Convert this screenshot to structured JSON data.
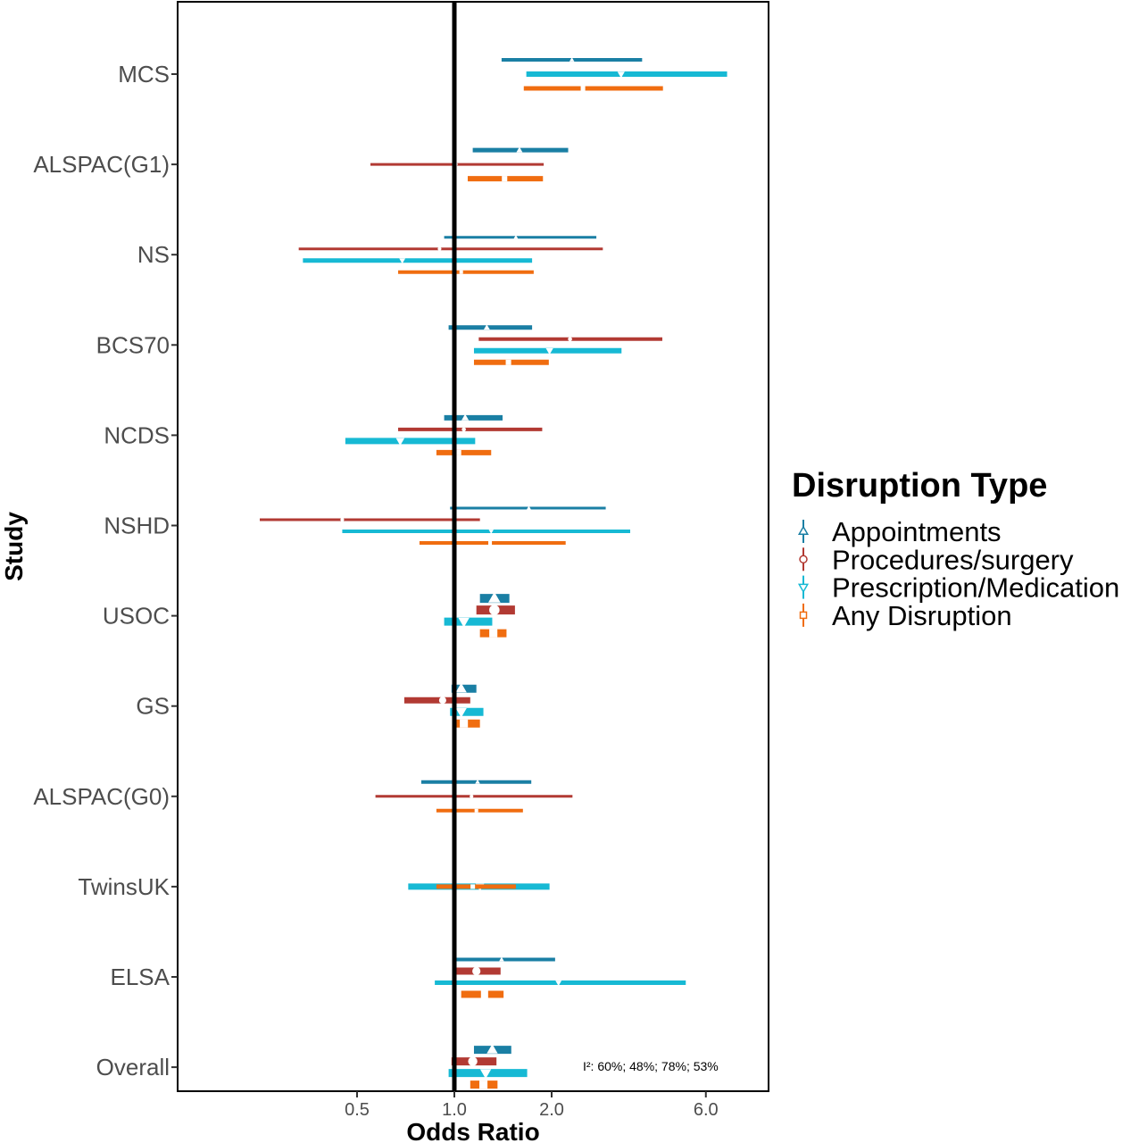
{
  "chart_data": {
    "type": "forest",
    "xlabel": "Odds Ratio",
    "ylabel": "Study",
    "x_scale": "log",
    "xlim": [
      0.3,
      7.6
    ],
    "x_ticks": [
      {
        "value": 0.5,
        "label": "0.5"
      },
      {
        "value": 1.0,
        "label": "1.0"
      },
      {
        "value": 2.0,
        "label": "2.0"
      },
      {
        "value": 6.0,
        "label": "6.0"
      }
    ],
    "reference_line": 1.0,
    "grid": false,
    "legend": {
      "title": "Disruption Type",
      "position": "right",
      "entries": [
        {
          "name": "Appointments",
          "color": "#1a7fa4",
          "shape": "triangle-up"
        },
        {
          "name": "Procedures/surgery",
          "color": "#b23a33",
          "shape": "circle"
        },
        {
          "name": "Prescription/Medication",
          "color": "#17b9d4",
          "shape": "triangle-down"
        },
        {
          "name": "Any Disruption",
          "color": "#f06d10",
          "shape": "square"
        }
      ]
    },
    "annotation": "I²: 60%; 48%; 78%; 53%",
    "studies": [
      {
        "label": "MCS",
        "rows": [
          {
            "type": 0,
            "or": 2.31,
            "lo": 1.4,
            "hi": 3.81,
            "w": 4
          },
          {
            "type": 2,
            "or": 3.28,
            "lo": 1.67,
            "hi": 6.98,
            "w": 6
          },
          {
            "type": 3,
            "or": 2.5,
            "lo": 1.64,
            "hi": 4.42,
            "w": 5
          }
        ]
      },
      {
        "label": "ALSPAC(G1)",
        "rows": [
          {
            "type": 0,
            "or": 1.59,
            "lo": 1.14,
            "hi": 2.25,
            "w": 5
          },
          {
            "type": 1,
            "or": 1.01,
            "lo": 0.55,
            "hi": 1.89,
            "w": 3
          },
          {
            "type": 3,
            "or": 1.43,
            "lo": 1.1,
            "hi": 1.88,
            "w": 6
          }
        ]
      },
      {
        "label": "NS",
        "rows": [
          {
            "type": 0,
            "or": 1.55,
            "lo": 0.93,
            "hi": 2.75,
            "w": 3
          },
          {
            "type": 1,
            "or": 0.9,
            "lo": 0.33,
            "hi": 2.88,
            "w": 3
          },
          {
            "type": 2,
            "or": 0.69,
            "lo": 0.34,
            "hi": 1.74,
            "w": 5
          },
          {
            "type": 3,
            "or": 1.05,
            "lo": 0.67,
            "hi": 1.76,
            "w": 4
          }
        ]
      },
      {
        "label": "BCS70",
        "rows": [
          {
            "type": 0,
            "or": 1.26,
            "lo": 0.96,
            "hi": 1.74,
            "w": 5
          },
          {
            "type": 1,
            "or": 2.28,
            "lo": 1.19,
            "hi": 4.4,
            "w": 4
          },
          {
            "type": 2,
            "or": 1.97,
            "lo": 1.15,
            "hi": 3.29,
            "w": 6
          },
          {
            "type": 3,
            "or": 1.47,
            "lo": 1.15,
            "hi": 1.96,
            "w": 6
          }
        ]
      },
      {
        "label": "NCDS",
        "rows": [
          {
            "type": 0,
            "or": 1.08,
            "lo": 0.93,
            "hi": 1.41,
            "w": 6
          },
          {
            "type": 1,
            "or": 1.07,
            "lo": 0.67,
            "hi": 1.87,
            "w": 4
          },
          {
            "type": 2,
            "or": 0.68,
            "lo": 0.46,
            "hi": 1.16,
            "w": 7
          },
          {
            "type": 3,
            "or": 1.03,
            "lo": 0.88,
            "hi": 1.3,
            "w": 6
          }
        ]
      },
      {
        "label": "NSHD",
        "rows": [
          {
            "type": 0,
            "or": 1.7,
            "lo": 0.97,
            "hi": 2.94,
            "w": 3
          },
          {
            "type": 1,
            "or": 0.45,
            "lo": 0.25,
            "hi": 1.2,
            "w": 3
          },
          {
            "type": 2,
            "or": 1.3,
            "lo": 0.45,
            "hi": 3.5,
            "w": 4
          },
          {
            "type": 3,
            "or": 1.29,
            "lo": 0.78,
            "hi": 2.21,
            "w": 4
          }
        ]
      },
      {
        "label": "USOC",
        "rows": [
          {
            "type": 0,
            "or": 1.33,
            "lo": 1.2,
            "hi": 1.48,
            "w": 10
          },
          {
            "type": 1,
            "or": 1.33,
            "lo": 1.17,
            "hi": 1.54,
            "w": 10
          },
          {
            "type": 2,
            "or": 1.07,
            "lo": 0.93,
            "hi": 1.31,
            "w": 9
          },
          {
            "type": 3,
            "or": 1.32,
            "lo": 1.2,
            "hi": 1.45,
            "w": 9
          }
        ]
      },
      {
        "label": "GS",
        "rows": [
          {
            "type": 0,
            "or": 1.05,
            "lo": 0.98,
            "hi": 1.17,
            "w": 9
          },
          {
            "type": 1,
            "or": 0.92,
            "lo": 0.7,
            "hi": 1.12,
            "w": 7
          },
          {
            "type": 2,
            "or": 1.05,
            "lo": 0.97,
            "hi": 1.23,
            "w": 9
          },
          {
            "type": 3,
            "or": 1.07,
            "lo": 1.0,
            "hi": 1.2,
            "w": 9
          }
        ]
      },
      {
        "label": "ALSPAC(G0)",
        "rows": [
          {
            "type": 0,
            "or": 1.18,
            "lo": 0.79,
            "hi": 1.73,
            "w": 4
          },
          {
            "type": 1,
            "or": 1.13,
            "lo": 0.57,
            "hi": 2.32,
            "w": 3
          },
          {
            "type": 3,
            "or": 1.17,
            "lo": 0.88,
            "hi": 1.63,
            "w": 4
          }
        ]
      },
      {
        "label": "TwinsUK",
        "rows": [
          {
            "type": 2,
            "or": 1.2,
            "lo": 0.72,
            "hi": 1.97,
            "w": 7
          },
          {
            "type": 3,
            "or": 1.14,
            "lo": 0.88,
            "hi": 1.55,
            "w": 5
          }
        ]
      },
      {
        "label": "ELSA",
        "rows": [
          {
            "type": 0,
            "or": 1.4,
            "lo": 1.01,
            "hi": 2.05,
            "w": 4
          },
          {
            "type": 1,
            "or": 1.17,
            "lo": 1.01,
            "hi": 1.39,
            "w": 8
          },
          {
            "type": 2,
            "or": 2.1,
            "lo": 0.87,
            "hi": 5.2,
            "w": 5
          },
          {
            "type": 3,
            "or": 1.24,
            "lo": 1.05,
            "hi": 1.42,
            "w": 8
          }
        ]
      },
      {
        "label": "Overall",
        "rows": [
          {
            "type": 0,
            "or": 1.31,
            "lo": 1.15,
            "hi": 1.5,
            "w": 9
          },
          {
            "type": 1,
            "or": 1.14,
            "lo": 0.98,
            "hi": 1.35,
            "w": 9
          },
          {
            "type": 2,
            "or": 1.25,
            "lo": 0.96,
            "hi": 1.68,
            "w": 9
          },
          {
            "type": 3,
            "or": 1.23,
            "lo": 1.12,
            "hi": 1.36,
            "w": 9
          }
        ]
      }
    ]
  }
}
